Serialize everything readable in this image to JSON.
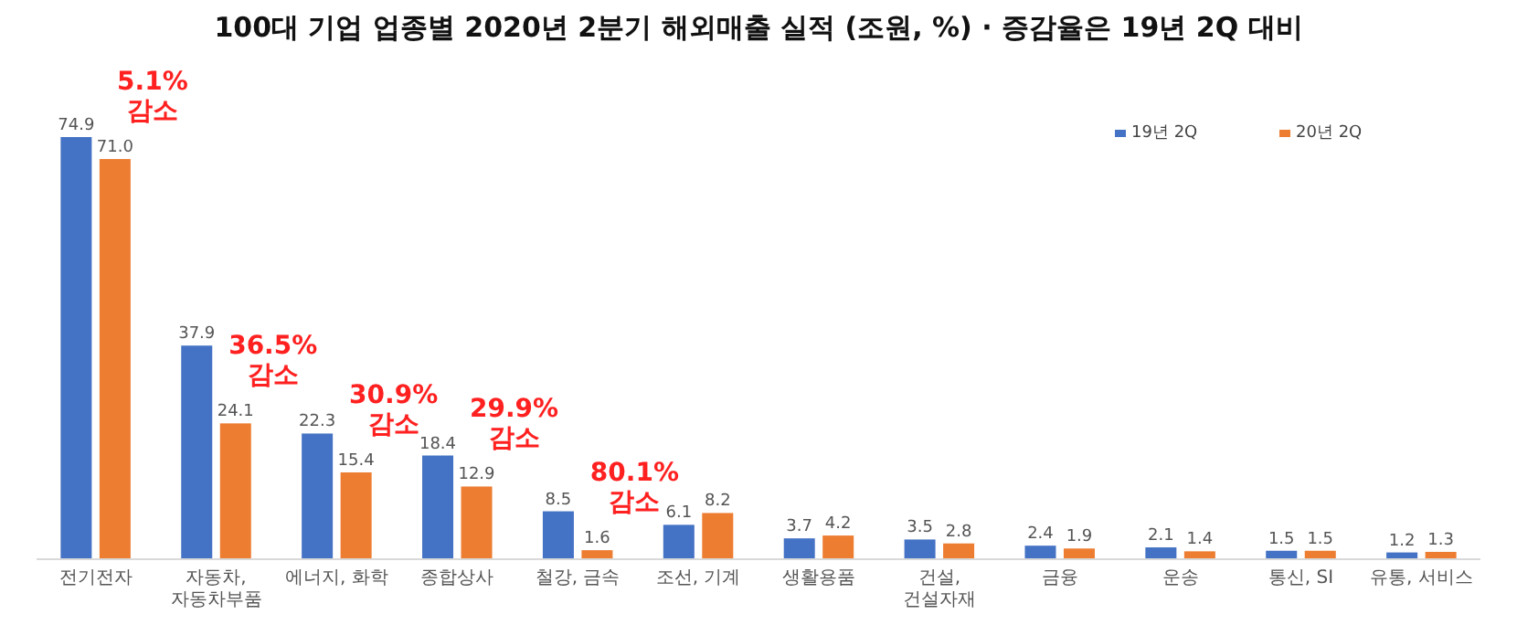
{
  "chart_data": {
    "type": "bar",
    "title": "100대 기업 업종별 2020년 2분기 해외매출 실적 (조원, %) · 증감율은 19년 2Q 대비",
    "categories": [
      "전기전자",
      "자동차,\n자동차부품",
      "에너지, 화학",
      "종합상사",
      "철강, 금속",
      "조선, 기계",
      "생활용품",
      "건설,\n건설자재",
      "금융",
      "운송",
      "통신, SI",
      "유통, 서비스"
    ],
    "series": [
      {
        "name": "19년 2Q",
        "color": "#4472c4",
        "values": [
          74.9,
          37.9,
          22.3,
          18.4,
          8.5,
          6.1,
          3.7,
          3.5,
          2.4,
          2.1,
          1.5,
          1.2
        ],
        "value_labels": [
          "74.9",
          "37.9",
          "22.3",
          "18.4",
          "8.5",
          "6.1",
          "3.7",
          "3.5",
          "2.4",
          "2.1",
          "1.5",
          "1.2"
        ]
      },
      {
        "name": "20년 2Q",
        "color": "#ed7d31",
        "values": [
          71.0,
          24.1,
          15.4,
          12.9,
          1.6,
          8.2,
          4.2,
          2.8,
          1.9,
          1.4,
          1.5,
          1.3
        ],
        "value_labels": [
          "71.0",
          "24.1",
          "15.4",
          "12.9",
          "1.6",
          "8.2",
          "4.2",
          "2.8",
          "1.9",
          "1.4",
          "1.5",
          "1.3"
        ]
      }
    ],
    "legend": "top right",
    "grid": false,
    "annotations": [
      "5.1%\n감소",
      "36.5%\n감소",
      "30.9%\n감소",
      "29.9%\n감소",
      "80.1%\n감소"
    ]
  }
}
